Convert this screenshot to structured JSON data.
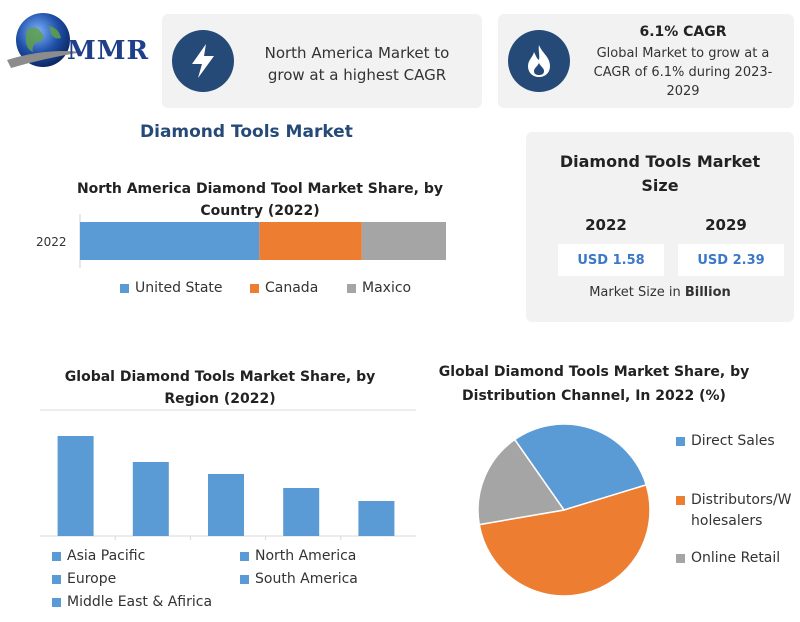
{
  "brand": {
    "logo_text": "MMR"
  },
  "header": {
    "card1": {
      "icon": "lightning-bolt-icon",
      "text": "North America Market to grow at a highest CAGR"
    },
    "card2": {
      "icon": "flame-icon",
      "title": "6.1% CAGR",
      "text": "Global Market to grow at a CAGR of 6.1% during 2023-2029"
    }
  },
  "main_title": "Diamond Tools Market",
  "market_size": {
    "title": "Diamond Tools Market Size",
    "years": [
      "2022",
      "2029"
    ],
    "values": [
      "USD 1.58",
      "USD 2.39"
    ],
    "unit_prefix": "Market Size in ",
    "unit_bold": "Billion"
  },
  "colors": {
    "blue": "#5b9bd5",
    "orange": "#ed7d31",
    "gray": "#a5a5a5",
    "navy": "#264a78"
  },
  "chart_data": [
    {
      "type": "bar",
      "orientation": "horizontal-stacked",
      "title": "North America Diamond Tool Market Share, by Country (2022)",
      "categories": [
        "2022"
      ],
      "series": [
        {
          "name": "United State",
          "values": [
            49
          ]
        },
        {
          "name": "Canada",
          "values": [
            28
          ]
        },
        {
          "name": "Maxico",
          "values": [
            23
          ]
        }
      ],
      "legend": "bottom"
    },
    {
      "type": "bar",
      "title": "Global Diamond Tools Market Share, by Region (2022)",
      "categories": [
        "Asia Pacific",
        "Europe",
        "North America",
        "South America",
        "Middle East & Afirica"
      ],
      "values": [
        100,
        74,
        62,
        48,
        35
      ],
      "legend": "bottom"
    },
    {
      "type": "pie",
      "title": "Global Diamond Tools Market Share, by Distribution Channel, In 2022 (%)",
      "categories": [
        "Direct Sales",
        "Distributors/Wholesalers",
        "Online Retail"
      ],
      "values": [
        30,
        52,
        18
      ],
      "legend": "right"
    }
  ],
  "legends": {
    "region": [
      "Asia Pacific",
      "North America",
      "Europe",
      "South America",
      "Middle East & Afirica"
    ],
    "channel": [
      "Direct Sales",
      "Distributors/W\nholesalers",
      "Online Retail"
    ]
  }
}
